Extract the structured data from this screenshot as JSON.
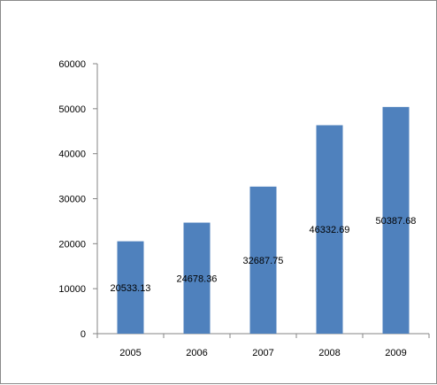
{
  "chart_data": {
    "type": "bar",
    "title": "",
    "xlabel": "",
    "ylabel": "",
    "categories": [
      "2005",
      "2006",
      "2007",
      "2008",
      "2009"
    ],
    "values": [
      20533.13,
      24678.36,
      32687.75,
      46332.69,
      50387.68
    ],
    "data_labels": [
      "20533.13",
      "24678.36",
      "32687.75",
      "46332.69",
      "50387.68"
    ],
    "ylim": [
      0,
      60000
    ],
    "yticks": [
      "0",
      "10000",
      "20000",
      "30000",
      "40000",
      "50000",
      "60000"
    ],
    "bar_color": "#4f81bd",
    "grid": false,
    "legend": "none"
  }
}
